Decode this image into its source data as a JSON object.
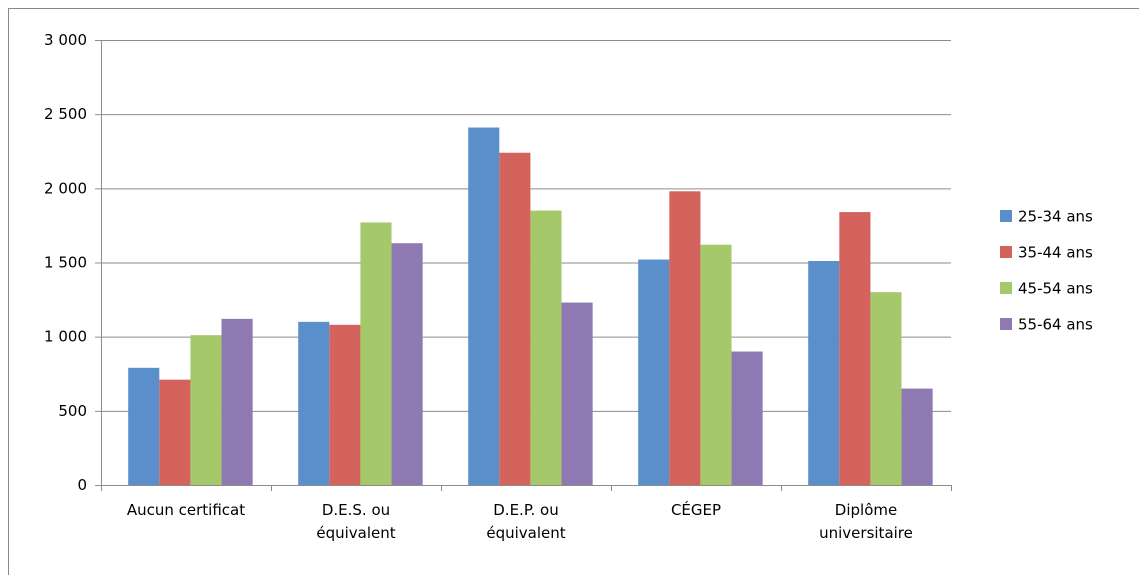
{
  "chart_data": {
    "type": "bar",
    "categories": [
      "Aucun certificat",
      "D.E.S. ou\néquivalent",
      "D.E.P. ou\néquivalent",
      "CÉGEP",
      "Diplôme\nuniversitaire"
    ],
    "series": [
      {
        "name": "25-34 ans",
        "color": "#5b8fcb",
        "values": [
          790,
          1100,
          2410,
          1520,
          1510
        ]
      },
      {
        "name": "35-44 ans",
        "color": "#d4625d",
        "values": [
          710,
          1080,
          2240,
          1980,
          1840
        ]
      },
      {
        "name": "45-54 ans",
        "color": "#a5c86a",
        "values": [
          1010,
          1770,
          1850,
          1620,
          1300
        ]
      },
      {
        "name": "55-64 ans",
        "color": "#8f79b3",
        "values": [
          1120,
          1630,
          1230,
          900,
          650
        ]
      }
    ],
    "ylim": [
      0,
      3000
    ],
    "yticks": [
      0,
      500,
      {
        "value": 1000,
        "label": "1 000"
      },
      {
        "value": 1500,
        "label": "1 500"
      },
      {
        "value": 2000,
        "label": "2 000"
      },
      {
        "value": 2500,
        "label": "2 500"
      },
      {
        "value": 3000,
        "label": "3 000"
      }
    ],
    "grid": true,
    "legend": "right"
  }
}
